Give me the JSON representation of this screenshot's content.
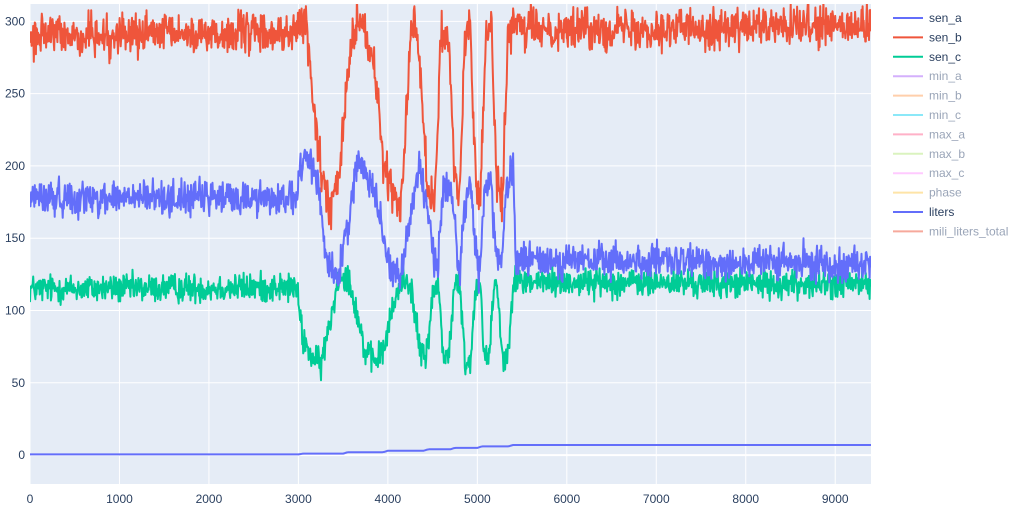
{
  "chart_data": {
    "type": "line",
    "title": "",
    "xlabel": "",
    "ylabel": "",
    "xlim": [
      0,
      9400
    ],
    "ylim": [
      -20,
      312
    ],
    "x_ticks": [
      0,
      1000,
      2000,
      3000,
      4000,
      5000,
      6000,
      7000,
      8000,
      9000
    ],
    "y_ticks": [
      0,
      50,
      100,
      150,
      200,
      250,
      300
    ],
    "grid": true,
    "legend": {
      "placement": "right"
    },
    "colors": {
      "plot_bg": "#e5ecf6",
      "grid": "#ffffff",
      "axis_text": "#2a3f5f"
    },
    "series": [
      {
        "name": "sen_a",
        "visible": true,
        "color": "#636efa",
        "noise": 6,
        "points": [
          [
            0,
            178
          ],
          [
            2980,
            178
          ],
          [
            3020,
            195
          ],
          [
            3100,
            205
          ],
          [
            3180,
            200
          ],
          [
            3250,
            170
          ],
          [
            3320,
            135
          ],
          [
            3450,
            122
          ],
          [
            3550,
            160
          ],
          [
            3650,
            200
          ],
          [
            3750,
            198
          ],
          [
            3850,
            185
          ],
          [
            3950,
            150
          ],
          [
            4050,
            128
          ],
          [
            4150,
            125
          ],
          [
            4250,
            165
          ],
          [
            4350,
            200
          ],
          [
            4450,
            170
          ],
          [
            4500,
            140
          ],
          [
            4560,
            130
          ],
          [
            4620,
            185
          ],
          [
            4700,
            190
          ],
          [
            4760,
            150
          ],
          [
            4800,
            125
          ],
          [
            4850,
            170
          ],
          [
            4920,
            190
          ],
          [
            4980,
            140
          ],
          [
            5020,
            125
          ],
          [
            5080,
            185
          ],
          [
            5150,
            190
          ],
          [
            5200,
            140
          ],
          [
            5260,
            125
          ],
          [
            5320,
            180
          ],
          [
            5400,
            200
          ],
          [
            5430,
            135
          ],
          [
            9400,
            132
          ]
        ]
      },
      {
        "name": "sen_b",
        "visible": true,
        "color": "#ef553b",
        "noise": 7,
        "points": [
          [
            0,
            290
          ],
          [
            2980,
            292
          ],
          [
            3060,
            300
          ],
          [
            3100,
            295
          ],
          [
            3150,
            250
          ],
          [
            3250,
            200
          ],
          [
            3350,
            170
          ],
          [
            3450,
            190
          ],
          [
            3550,
            265
          ],
          [
            3650,
            300
          ],
          [
            3750,
            295
          ],
          [
            3850,
            265
          ],
          [
            3950,
            205
          ],
          [
            4050,
            180
          ],
          [
            4150,
            175
          ],
          [
            4250,
            290
          ],
          [
            4320,
            300
          ],
          [
            4400,
            230
          ],
          [
            4450,
            185
          ],
          [
            4520,
            175
          ],
          [
            4600,
            295
          ],
          [
            4680,
            290
          ],
          [
            4740,
            200
          ],
          [
            4800,
            178
          ],
          [
            4860,
            290
          ],
          [
            4920,
            295
          ],
          [
            4980,
            190
          ],
          [
            5030,
            175
          ],
          [
            5100,
            295
          ],
          [
            5160,
            292
          ],
          [
            5220,
            190
          ],
          [
            5280,
            175
          ],
          [
            5340,
            285
          ],
          [
            5400,
            300
          ],
          [
            5450,
            295
          ],
          [
            9400,
            296
          ]
        ]
      },
      {
        "name": "sen_c",
        "visible": true,
        "color": "#00cc96",
        "noise": 5,
        "points": [
          [
            0,
            115
          ],
          [
            2980,
            116
          ],
          [
            3050,
            80
          ],
          [
            3150,
            68
          ],
          [
            3250,
            62
          ],
          [
            3350,
            90
          ],
          [
            3450,
            125
          ],
          [
            3550,
            125
          ],
          [
            3650,
            100
          ],
          [
            3750,
            70
          ],
          [
            3850,
            65
          ],
          [
            3950,
            72
          ],
          [
            4050,
            100
          ],
          [
            4150,
            122
          ],
          [
            4250,
            120
          ],
          [
            4350,
            75
          ],
          [
            4420,
            65
          ],
          [
            4500,
            110
          ],
          [
            4560,
            120
          ],
          [
            4620,
            70
          ],
          [
            4680,
            68
          ],
          [
            4740,
            115
          ],
          [
            4800,
            120
          ],
          [
            4860,
            65
          ],
          [
            4920,
            63
          ],
          [
            4980,
            115
          ],
          [
            5030,
            120
          ],
          [
            5080,
            70
          ],
          [
            5130,
            65
          ],
          [
            5180,
            115
          ],
          [
            5220,
            120
          ],
          [
            5280,
            68
          ],
          [
            5330,
            65
          ],
          [
            5400,
            120
          ],
          [
            9400,
            118
          ]
        ]
      },
      {
        "name": "min_a",
        "visible": false,
        "color": "#ab63fa"
      },
      {
        "name": "min_b",
        "visible": false,
        "color": "#ffa15a"
      },
      {
        "name": "min_c",
        "visible": false,
        "color": "#19d3f3"
      },
      {
        "name": "max_a",
        "visible": false,
        "color": "#ff6692"
      },
      {
        "name": "max_b",
        "visible": false,
        "color": "#b6e880"
      },
      {
        "name": "max_c",
        "visible": false,
        "color": "#ff97ff"
      },
      {
        "name": "phase",
        "visible": false,
        "color": "#fecb52"
      },
      {
        "name": "liters",
        "visible": true,
        "color": "#636efa",
        "noise": 0,
        "points": [
          [
            0,
            0.5
          ],
          [
            3000,
            0.5
          ],
          [
            3050,
            1
          ],
          [
            3500,
            1
          ],
          [
            3550,
            2
          ],
          [
            3950,
            2
          ],
          [
            4000,
            3
          ],
          [
            4400,
            3
          ],
          [
            4450,
            4
          ],
          [
            4700,
            4
          ],
          [
            4750,
            5
          ],
          [
            5000,
            5
          ],
          [
            5050,
            6
          ],
          [
            5350,
            6
          ],
          [
            5400,
            7
          ],
          [
            9400,
            7
          ]
        ]
      },
      {
        "name": "mili_liters_total",
        "visible": false,
        "color": "#ef553b"
      }
    ]
  }
}
